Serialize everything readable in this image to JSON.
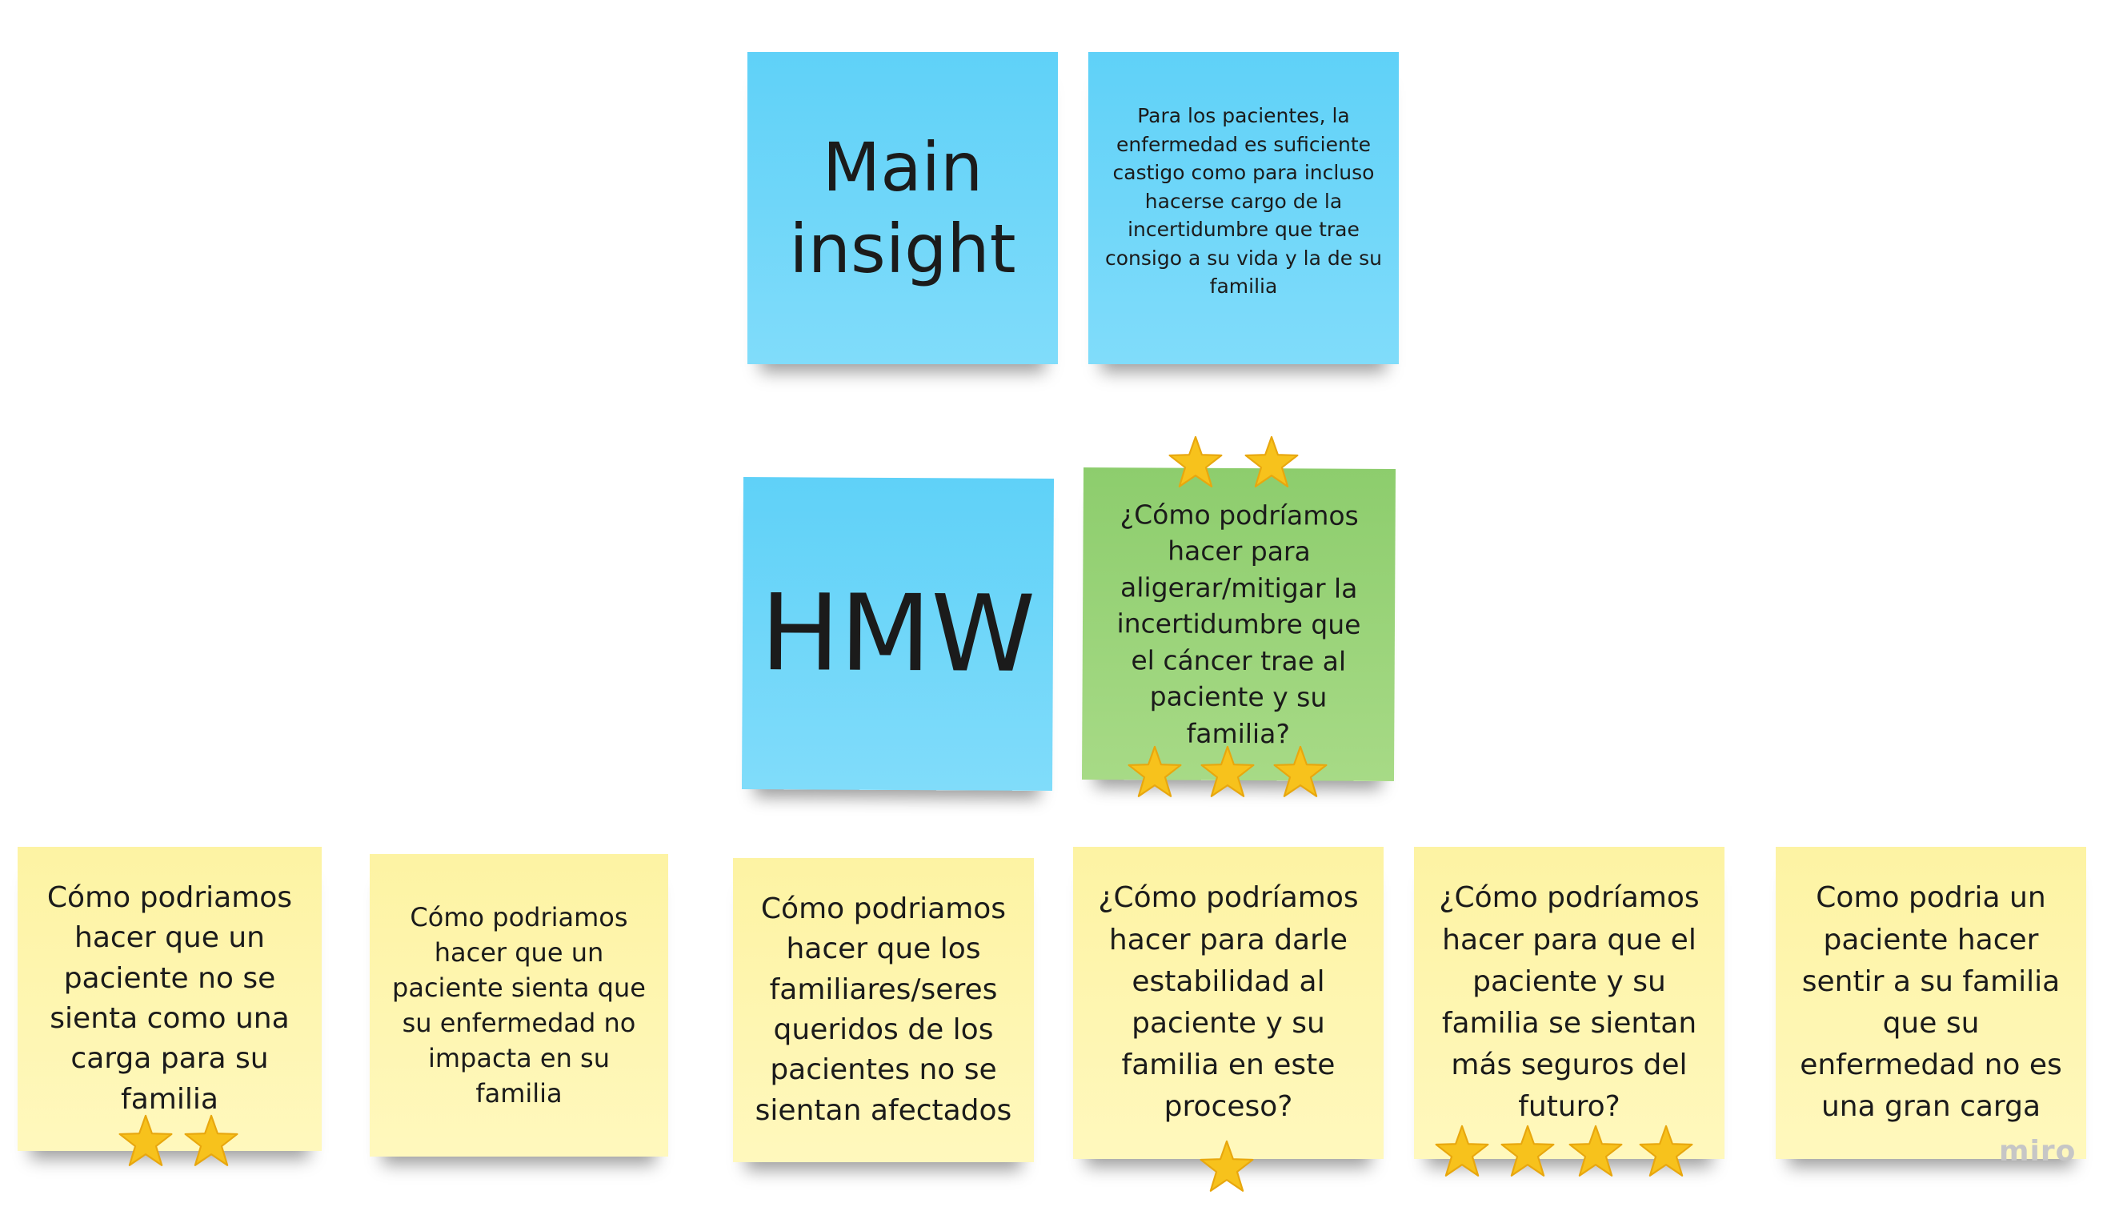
{
  "notes": {
    "main_title": "Main\ninsight",
    "main_text": "Para los pacientes,  la\nenfermedad es suficiente\ncastigo como para incluso\nhacerse cargo de la\nincertidumbre que trae\nconsigo a su vida y la de su\nfamilia",
    "hmw_title": "HMW",
    "hmw_main": "¿Cómo podríamos\nhacer para\naligerar/mitigar la\nincertidumbre que\nel cáncer trae al\npaciente y su\nfamilia?",
    "idea1": "Cómo podriamos\nhacer que un\npaciente no se\nsienta como una\ncarga para su\nfamilia",
    "idea2": "Cómo podriamos\nhacer que un\npaciente sienta que\nsu enfermedad no\nimpacta en su\nfamilia",
    "idea3": "Cómo podriamos\nhacer que los\nfamiliares/seres\nqueridos de los\npacientes no se\nsientan afectados",
    "idea4": "¿Cómo podríamos\nhacer para darle\nestabilidad al\npaciente y su\nfamilia en este\nproceso?",
    "idea5": "¿Cómo podríamos\nhacer para que el\npaciente y su\nfamilia se sientan\nmás seguros del\nfuturo?",
    "idea6": "Como podria un\npaciente hacer\nsentir a su familia\nque su\nenfermedad no es\nuna gran carga"
  },
  "votes": {
    "hmw_main": 5,
    "idea1": 2,
    "idea2": 0,
    "idea3": 0,
    "idea4": 1,
    "idea5": 4,
    "idea6": 0
  },
  "icons": {
    "vote": "star-icon"
  },
  "colors": {
    "blue": "#6ad5f9",
    "green": "#97d276",
    "yellow": "#fef6ae",
    "star": "#f7c21c"
  },
  "watermark": "miro"
}
